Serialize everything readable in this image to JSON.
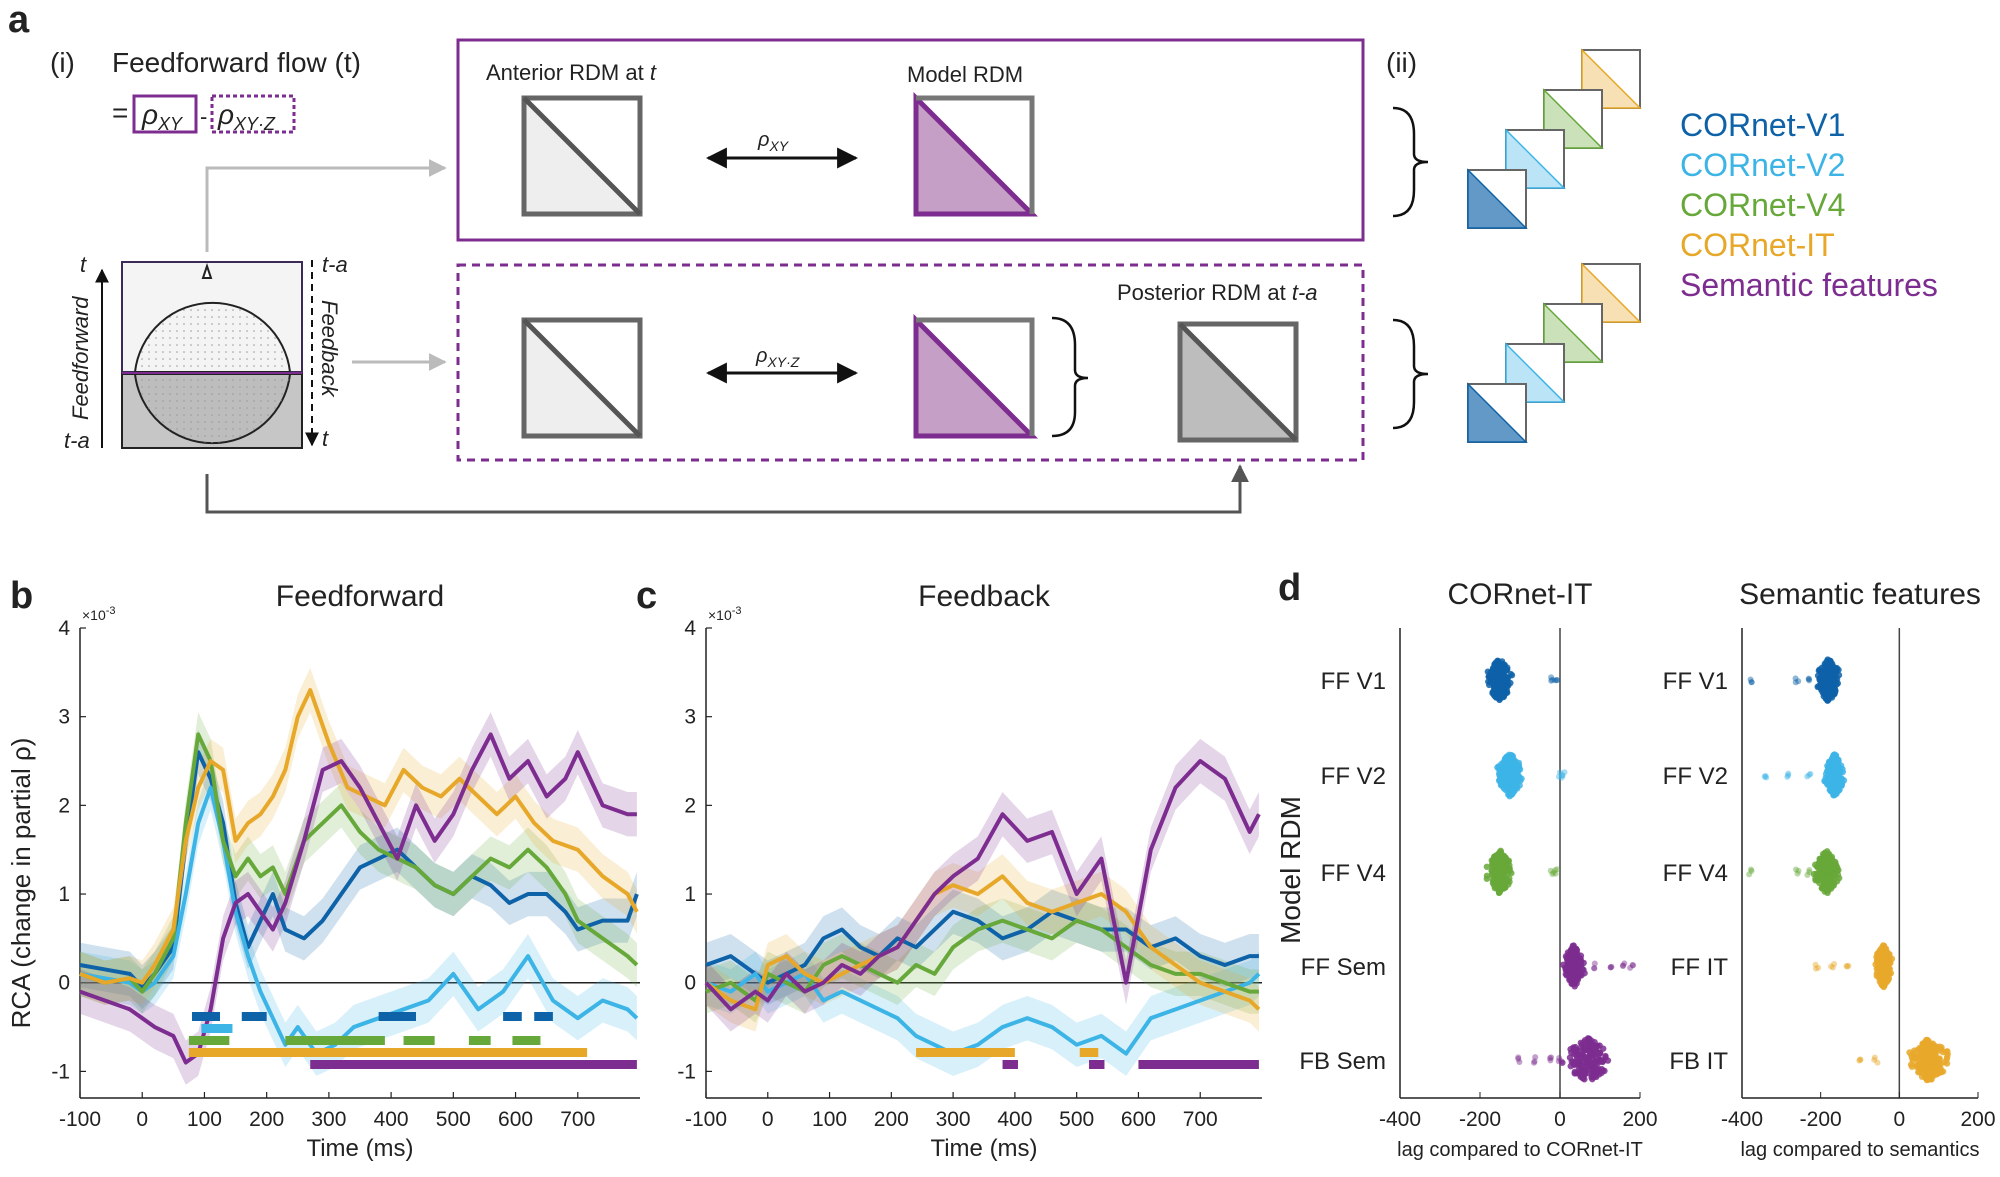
{
  "panel_a": {
    "letter": "a",
    "i_label": "(i)",
    "ii_label": "(ii)",
    "ff_title": "Feedforward flow (t)",
    "eq_sign": "=",
    "rho_xy": "ρ",
    "rho_xy_sub": "XY",
    "minus": "-",
    "rho_xyz": "ρ",
    "rho_xyz_sub": "XY·Z",
    "anterior_label": "Anterior RDM at ",
    "anterior_t": "t",
    "model_label": "Model RDM",
    "posterior_label": "Posterior RDM at ",
    "posterior_t": "t-a",
    "arrow_top_label": "ρ",
    "arrow_top_sub": "XY",
    "arrow_bot_label": "ρ",
    "arrow_bot_sub": "XY·Z",
    "head_t_left": "t",
    "head_ta_left": "t-a",
    "head_ta_right": "t-a",
    "head_t_right": "t",
    "feedforward_vert": "Feedforward",
    "feedback_vert": "Feedback",
    "legend": [
      {
        "label": "CORnet-V1",
        "color": "#0e62a8"
      },
      {
        "label": "CORnet-V2",
        "color": "#3cb4e6"
      },
      {
        "label": "CORnet-V4",
        "color": "#67a83a"
      },
      {
        "label": "CORnet-IT",
        "color": "#e7a82a"
      },
      {
        "label": "Semantic features",
        "color": "#7d2d8f"
      }
    ]
  },
  "chart_data": [
    {
      "id": "b",
      "letter": "b",
      "type": "line",
      "title": "Feedforward",
      "ylabel": "RCA (change in partial ρ)",
      "xlabel": "Time (ms)",
      "exponent": "×10",
      "exponent_power": "-3",
      "xlim": [
        -100,
        800
      ],
      "ylim": [
        -1.3,
        4
      ],
      "xticks": [
        -100,
        0,
        100,
        200,
        300,
        400,
        500,
        600,
        700
      ],
      "yticks": [
        -1,
        0,
        1,
        2,
        3,
        4
      ],
      "series": [
        {
          "name": "CORnet-V1",
          "color": "#0e62a8",
          "x": [
            -100,
            -60,
            -20,
            0,
            20,
            50,
            70,
            90,
            110,
            130,
            150,
            170,
            190,
            210,
            230,
            260,
            290,
            320,
            350,
            380,
            410,
            440,
            470,
            500,
            530,
            560,
            590,
            620,
            650,
            680,
            700,
            740,
            780,
            795
          ],
          "y": [
            0.2,
            0.15,
            0.1,
            -0.05,
            0.1,
            0.4,
            1.6,
            2.6,
            2.3,
            1.8,
            0.9,
            0.4,
            0.7,
            1.0,
            0.6,
            0.5,
            0.7,
            1.0,
            1.3,
            1.4,
            1.5,
            1.3,
            1.1,
            1.0,
            1.2,
            1.1,
            0.9,
            1.0,
            1.0,
            0.8,
            0.6,
            0.7,
            0.7,
            1.0
          ]
        },
        {
          "name": "CORnet-V2",
          "color": "#3cb4e6",
          "x": [
            -100,
            -60,
            -20,
            0,
            20,
            50,
            70,
            90,
            110,
            130,
            150,
            170,
            190,
            210,
            230,
            250,
            280,
            310,
            340,
            380,
            420,
            460,
            500,
            540,
            580,
            620,
            660,
            700,
            740,
            780,
            795
          ],
          "y": [
            0.1,
            0.05,
            0.0,
            -0.1,
            0.0,
            0.3,
            1.0,
            1.8,
            2.2,
            1.6,
            0.8,
            0.3,
            -0.1,
            -0.4,
            -0.7,
            -0.5,
            -0.8,
            -0.7,
            -0.5,
            -0.4,
            -0.3,
            -0.2,
            0.1,
            -0.3,
            -0.1,
            0.3,
            -0.2,
            -0.4,
            -0.2,
            -0.3,
            -0.4
          ]
        },
        {
          "name": "CORnet-V4",
          "color": "#67a83a",
          "x": [
            -100,
            -60,
            -20,
            0,
            20,
            50,
            70,
            90,
            110,
            130,
            150,
            170,
            190,
            210,
            230,
            260,
            290,
            320,
            350,
            380,
            410,
            440,
            470,
            500,
            530,
            560,
            590,
            620,
            650,
            680,
            700,
            740,
            780,
            795
          ],
          "y": [
            0.1,
            0.0,
            0.05,
            -0.1,
            0.1,
            0.5,
            1.8,
            2.8,
            2.5,
            1.6,
            1.2,
            1.4,
            1.2,
            1.3,
            1.0,
            1.6,
            1.8,
            2.0,
            1.7,
            1.5,
            1.4,
            1.3,
            1.1,
            1.0,
            1.2,
            1.4,
            1.3,
            1.5,
            1.3,
            1.0,
            0.7,
            0.5,
            0.3,
            0.2
          ]
        },
        {
          "name": "CORnet-IT",
          "color": "#e7a82a",
          "x": [
            -100,
            -60,
            -20,
            0,
            20,
            50,
            70,
            90,
            110,
            130,
            150,
            170,
            190,
            210,
            230,
            250,
            270,
            300,
            330,
            360,
            390,
            420,
            450,
            480,
            510,
            540,
            570,
            600,
            630,
            660,
            700,
            740,
            780,
            795
          ],
          "y": [
            0.1,
            0.0,
            0.05,
            0.0,
            0.2,
            0.6,
            1.6,
            2.2,
            2.5,
            2.4,
            1.6,
            1.8,
            1.9,
            2.1,
            2.4,
            3.0,
            3.3,
            2.7,
            2.2,
            2.1,
            2.0,
            2.4,
            2.2,
            2.1,
            2.3,
            2.1,
            1.9,
            2.1,
            1.8,
            1.6,
            1.5,
            1.2,
            1.0,
            0.8
          ]
        },
        {
          "name": "Semantic features",
          "color": "#7d2d8f",
          "x": [
            -100,
            -60,
            -20,
            0,
            20,
            50,
            70,
            90,
            110,
            130,
            150,
            170,
            190,
            210,
            230,
            260,
            290,
            320,
            350,
            380,
            410,
            440,
            470,
            500,
            530,
            560,
            590,
            620,
            650,
            680,
            700,
            740,
            780,
            795
          ],
          "y": [
            -0.1,
            -0.2,
            -0.3,
            -0.4,
            -0.5,
            -0.6,
            -0.9,
            -0.8,
            -0.3,
            0.5,
            0.9,
            1.0,
            0.8,
            0.6,
            0.9,
            1.6,
            2.4,
            2.5,
            2.2,
            1.8,
            1.4,
            2.0,
            1.6,
            1.9,
            2.4,
            2.8,
            2.3,
            2.5,
            2.1,
            2.3,
            2.6,
            2.0,
            1.9,
            1.9
          ]
        }
      ],
      "significance_bars": [
        {
          "series": "CORnet-V1",
          "color": "#0e62a8",
          "intervals": [
            [
              80,
              125
            ],
            [
              160,
              200
            ],
            [
              380,
              440
            ],
            [
              580,
              610
            ],
            [
              630,
              660
            ]
          ]
        },
        {
          "series": "CORnet-V2",
          "color": "#3cb4e6",
          "intervals": [
            [
              95,
              145
            ]
          ]
        },
        {
          "series": "CORnet-V4",
          "color": "#67a83a",
          "intervals": [
            [
              75,
              140
            ],
            [
              230,
              390
            ],
            [
              420,
              470
            ],
            [
              525,
              560
            ],
            [
              595,
              640
            ]
          ]
        },
        {
          "series": "CORnet-IT",
          "color": "#e7a82a",
          "intervals": [
            [
              75,
              715
            ]
          ]
        },
        {
          "series": "Semantic features",
          "color": "#7d2d8f",
          "intervals": [
            [
              270,
              795
            ]
          ]
        }
      ]
    },
    {
      "id": "c",
      "letter": "c",
      "type": "line",
      "title": "Feedback",
      "xlabel": "Time (ms)",
      "exponent": "×10",
      "exponent_power": "-3",
      "xlim": [
        -100,
        800
      ],
      "ylim": [
        -1.3,
        4
      ],
      "xticks": [
        -100,
        0,
        100,
        200,
        300,
        400,
        500,
        600,
        700
      ],
      "yticks": [
        -1,
        0,
        1,
        2,
        3,
        4
      ],
      "series": [
        {
          "name": "CORnet-V1",
          "color": "#0e62a8",
          "x": [
            -100,
            -60,
            -20,
            0,
            30,
            60,
            90,
            120,
            150,
            180,
            210,
            240,
            270,
            300,
            340,
            380,
            420,
            460,
            500,
            540,
            580,
            620,
            660,
            700,
            740,
            780,
            795
          ],
          "y": [
            0.2,
            0.3,
            0.1,
            0.0,
            0.1,
            0.2,
            0.5,
            0.6,
            0.4,
            0.3,
            0.5,
            0.4,
            0.6,
            0.8,
            0.7,
            0.5,
            0.6,
            0.8,
            0.7,
            0.6,
            0.6,
            0.4,
            0.5,
            0.3,
            0.2,
            0.3,
            0.3
          ]
        },
        {
          "name": "CORnet-V2",
          "color": "#3cb4e6",
          "x": [
            -100,
            -60,
            -20,
            0,
            30,
            60,
            90,
            120,
            150,
            180,
            210,
            240,
            270,
            300,
            340,
            380,
            420,
            460,
            500,
            540,
            580,
            620,
            660,
            700,
            740,
            780,
            795
          ],
          "y": [
            0.0,
            -0.1,
            0.1,
            -0.1,
            0.0,
            0.1,
            -0.2,
            -0.1,
            -0.2,
            -0.3,
            -0.4,
            -0.6,
            -0.7,
            -0.8,
            -0.7,
            -0.5,
            -0.4,
            -0.5,
            -0.7,
            -0.6,
            -0.8,
            -0.4,
            -0.3,
            -0.2,
            -0.1,
            0.0,
            0.1
          ]
        },
        {
          "name": "CORnet-V4",
          "color": "#67a83a",
          "x": [
            -100,
            -60,
            -20,
            0,
            30,
            60,
            90,
            120,
            150,
            180,
            210,
            240,
            270,
            300,
            340,
            380,
            420,
            460,
            500,
            540,
            580,
            620,
            660,
            700,
            740,
            780,
            795
          ],
          "y": [
            -0.1,
            0.0,
            -0.2,
            0.1,
            0.0,
            -0.1,
            0.2,
            0.3,
            0.2,
            0.1,
            0.0,
            0.2,
            0.1,
            0.4,
            0.6,
            0.7,
            0.6,
            0.5,
            0.7,
            0.6,
            0.4,
            0.2,
            0.1,
            0.1,
            0.0,
            -0.1,
            -0.1
          ]
        },
        {
          "name": "CORnet-IT",
          "color": "#e7a82a",
          "x": [
            -100,
            -60,
            -20,
            0,
            30,
            60,
            90,
            120,
            150,
            180,
            210,
            240,
            270,
            300,
            340,
            380,
            420,
            460,
            500,
            540,
            580,
            620,
            660,
            700,
            740,
            780,
            795
          ],
          "y": [
            0.0,
            -0.2,
            -0.3,
            0.2,
            0.3,
            0.1,
            0.0,
            0.1,
            0.2,
            0.3,
            0.4,
            0.7,
            1.0,
            1.1,
            1.0,
            1.2,
            0.9,
            0.8,
            0.9,
            1.0,
            0.8,
            0.4,
            0.2,
            0.0,
            -0.1,
            -0.2,
            -0.3
          ]
        },
        {
          "name": "Semantic features",
          "color": "#7d2d8f",
          "x": [
            -100,
            -60,
            -20,
            0,
            30,
            60,
            90,
            120,
            150,
            180,
            210,
            240,
            270,
            300,
            340,
            380,
            420,
            460,
            500,
            540,
            580,
            620,
            660,
            700,
            740,
            780,
            795
          ],
          "y": [
            0.0,
            -0.3,
            -0.1,
            -0.2,
            0.1,
            -0.1,
            0.0,
            0.2,
            0.1,
            0.3,
            0.4,
            0.7,
            1.0,
            1.2,
            1.4,
            1.9,
            1.6,
            1.7,
            1.0,
            1.4,
            0.0,
            1.5,
            2.2,
            2.5,
            2.3,
            1.7,
            1.9
          ]
        }
      ],
      "significance_bars": [
        {
          "series": "CORnet-IT",
          "color": "#e7a82a",
          "intervals": [
            [
              240,
              400
            ],
            [
              505,
              535
            ]
          ]
        },
        {
          "series": "Semantic features",
          "color": "#7d2d8f",
          "intervals": [
            [
              380,
              405
            ],
            [
              520,
              545
            ],
            [
              600,
              795
            ]
          ]
        }
      ]
    },
    {
      "id": "d",
      "letter": "d",
      "type": "scatter",
      "ylabel": "Model RDM",
      "subplots": [
        {
          "title": "CORnet-IT",
          "xlabel": "lag compared to CORnet-IT",
          "xlim": [
            -400,
            200
          ],
          "xticks": [
            -400,
            -200,
            0,
            200
          ],
          "rows": [
            {
              "label": "FF V1",
              "color": "#0e62a8",
              "center": -150,
              "spread": 25,
              "outliers": [
                -20,
                -10
              ]
            },
            {
              "label": "FF V2",
              "color": "#3cb4e6",
              "center": -125,
              "spread": 25,
              "outliers": [
                0,
                10
              ]
            },
            {
              "label": "FF V4",
              "color": "#67a83a",
              "center": -150,
              "spread": 25,
              "outliers": [
                -20,
                -10
              ]
            },
            {
              "label": "FF Sem",
              "color": "#7d2d8f",
              "center": 35,
              "spread": 20,
              "outliers": [
                90,
                130,
                160,
                180
              ]
            },
            {
              "label": "FB Sem",
              "color": "#7d2d8f",
              "center": 70,
              "spread": 45,
              "outliers": [
                -100,
                -60,
                -20,
                0
              ]
            }
          ]
        },
        {
          "title": "Semantic features",
          "xlabel": "lag compared to semantics",
          "xlim": [
            -400,
            200
          ],
          "xticks": [
            -400,
            -200,
            0,
            200
          ],
          "rows": [
            {
              "label": "FF V1",
              "color": "#0e62a8",
              "center": -180,
              "spread": 25,
              "outliers": [
                -380,
                -260,
                -230
              ]
            },
            {
              "label": "FF V2",
              "color": "#3cb4e6",
              "center": -165,
              "spread": 20,
              "outliers": [
                -340,
                -280,
                -230
              ]
            },
            {
              "label": "FF V4",
              "color": "#67a83a",
              "center": -185,
              "spread": 25,
              "outliers": [
                -380,
                -260,
                -230
              ]
            },
            {
              "label": "FF IT",
              "color": "#e7a82a",
              "center": -40,
              "spread": 18,
              "outliers": [
                -210,
                -170,
                -130
              ]
            },
            {
              "label": "FB IT",
              "color": "#e7a82a",
              "center": 75,
              "spread": 40,
              "outliers": [
                -100,
                -60
              ]
            }
          ]
        }
      ]
    }
  ]
}
